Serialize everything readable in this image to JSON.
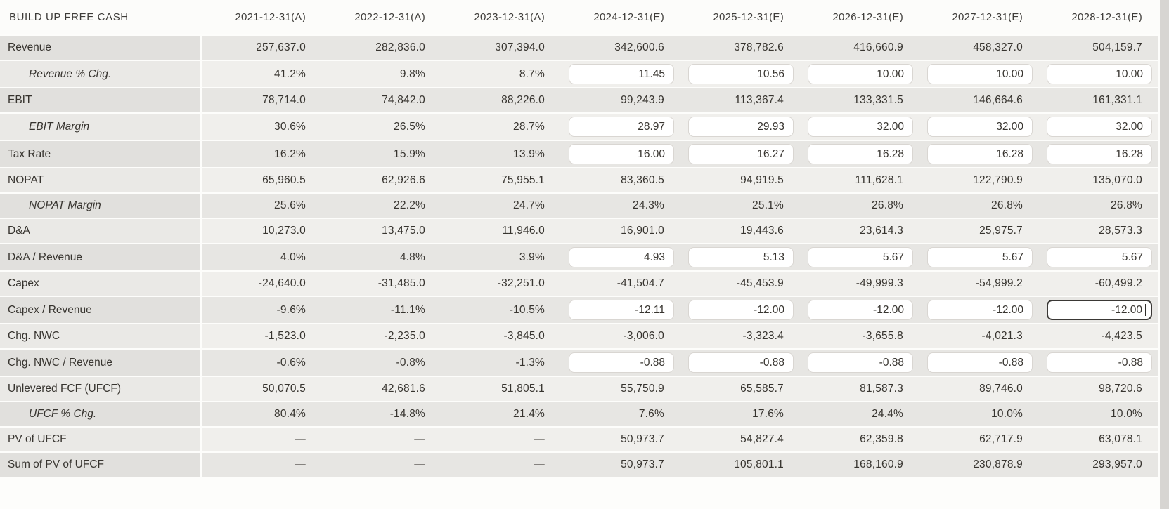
{
  "table": {
    "title": "BUILD UP FREE CASH",
    "columns": [
      "2021-12-31(A)",
      "2022-12-31(A)",
      "2023-12-31(A)",
      "2024-12-31(E)",
      "2025-12-31(E)",
      "2026-12-31(E)",
      "2027-12-31(E)",
      "2028-12-31(E)"
    ],
    "rows": [
      {
        "label": "Revenue",
        "italic": false,
        "indent": false,
        "cells": [
          {
            "kind": "text",
            "value": "257,637.0"
          },
          {
            "kind": "text",
            "value": "282,836.0"
          },
          {
            "kind": "text",
            "value": "307,394.0"
          },
          {
            "kind": "text",
            "value": "342,600.6"
          },
          {
            "kind": "text",
            "value": "378,782.6"
          },
          {
            "kind": "text",
            "value": "416,660.9"
          },
          {
            "kind": "text",
            "value": "458,327.0"
          },
          {
            "kind": "text",
            "value": "504,159.7"
          }
        ]
      },
      {
        "label": "Revenue % Chg.",
        "italic": true,
        "indent": true,
        "cells": [
          {
            "kind": "text",
            "value": "41.2%"
          },
          {
            "kind": "text",
            "value": "9.8%"
          },
          {
            "kind": "text",
            "value": "8.7%"
          },
          {
            "kind": "input",
            "value": "11.45"
          },
          {
            "kind": "input",
            "value": "10.56"
          },
          {
            "kind": "input",
            "value": "10.00"
          },
          {
            "kind": "input",
            "value": "10.00"
          },
          {
            "kind": "input",
            "value": "10.00"
          }
        ]
      },
      {
        "label": "EBIT",
        "italic": false,
        "indent": false,
        "cells": [
          {
            "kind": "text",
            "value": "78,714.0"
          },
          {
            "kind": "text",
            "value": "74,842.0"
          },
          {
            "kind": "text",
            "value": "88,226.0"
          },
          {
            "kind": "text",
            "value": "99,243.9"
          },
          {
            "kind": "text",
            "value": "113,367.4"
          },
          {
            "kind": "text",
            "value": "133,331.5"
          },
          {
            "kind": "text",
            "value": "146,664.6"
          },
          {
            "kind": "text",
            "value": "161,331.1"
          }
        ]
      },
      {
        "label": "EBIT Margin",
        "italic": true,
        "indent": true,
        "cells": [
          {
            "kind": "text",
            "value": "30.6%"
          },
          {
            "kind": "text",
            "value": "26.5%"
          },
          {
            "kind": "text",
            "value": "28.7%"
          },
          {
            "kind": "input",
            "value": "28.97"
          },
          {
            "kind": "input",
            "value": "29.93"
          },
          {
            "kind": "input",
            "value": "32.00"
          },
          {
            "kind": "input",
            "value": "32.00"
          },
          {
            "kind": "input",
            "value": "32.00"
          }
        ]
      },
      {
        "label": "Tax Rate",
        "italic": false,
        "indent": false,
        "cells": [
          {
            "kind": "text",
            "value": "16.2%"
          },
          {
            "kind": "text",
            "value": "15.9%"
          },
          {
            "kind": "text",
            "value": "13.9%"
          },
          {
            "kind": "input",
            "value": "16.00"
          },
          {
            "kind": "input",
            "value": "16.27"
          },
          {
            "kind": "input",
            "value": "16.28"
          },
          {
            "kind": "input",
            "value": "16.28"
          },
          {
            "kind": "input",
            "value": "16.28"
          }
        ]
      },
      {
        "label": "NOPAT",
        "italic": false,
        "indent": false,
        "cells": [
          {
            "kind": "text",
            "value": "65,960.5"
          },
          {
            "kind": "text",
            "value": "62,926.6"
          },
          {
            "kind": "text",
            "value": "75,955.1"
          },
          {
            "kind": "text",
            "value": "83,360.5"
          },
          {
            "kind": "text",
            "value": "94,919.5"
          },
          {
            "kind": "text",
            "value": "111,628.1"
          },
          {
            "kind": "text",
            "value": "122,790.9"
          },
          {
            "kind": "text",
            "value": "135,070.0"
          }
        ]
      },
      {
        "label": "NOPAT Margin",
        "italic": true,
        "indent": true,
        "cells": [
          {
            "kind": "text",
            "value": "25.6%"
          },
          {
            "kind": "text",
            "value": "22.2%"
          },
          {
            "kind": "text",
            "value": "24.7%"
          },
          {
            "kind": "text",
            "value": "24.3%"
          },
          {
            "kind": "text",
            "value": "25.1%"
          },
          {
            "kind": "text",
            "value": "26.8%"
          },
          {
            "kind": "text",
            "value": "26.8%"
          },
          {
            "kind": "text",
            "value": "26.8%"
          }
        ]
      },
      {
        "label": "D&A",
        "italic": false,
        "indent": false,
        "cells": [
          {
            "kind": "text",
            "value": "10,273.0"
          },
          {
            "kind": "text",
            "value": "13,475.0"
          },
          {
            "kind": "text",
            "value": "11,946.0"
          },
          {
            "kind": "text",
            "value": "16,901.0"
          },
          {
            "kind": "text",
            "value": "19,443.6"
          },
          {
            "kind": "text",
            "value": "23,614.3"
          },
          {
            "kind": "text",
            "value": "25,975.7"
          },
          {
            "kind": "text",
            "value": "28,573.3"
          }
        ]
      },
      {
        "label": "D&A / Revenue",
        "italic": false,
        "indent": false,
        "cells": [
          {
            "kind": "text",
            "value": "4.0%"
          },
          {
            "kind": "text",
            "value": "4.8%"
          },
          {
            "kind": "text",
            "value": "3.9%"
          },
          {
            "kind": "input",
            "value": "4.93"
          },
          {
            "kind": "input",
            "value": "5.13"
          },
          {
            "kind": "input",
            "value": "5.67"
          },
          {
            "kind": "input",
            "value": "5.67"
          },
          {
            "kind": "input",
            "value": "5.67"
          }
        ]
      },
      {
        "label": "Capex",
        "italic": false,
        "indent": false,
        "cells": [
          {
            "kind": "text",
            "value": "-24,640.0"
          },
          {
            "kind": "text",
            "value": "-31,485.0"
          },
          {
            "kind": "text",
            "value": "-32,251.0"
          },
          {
            "kind": "text",
            "value": "-41,504.7"
          },
          {
            "kind": "text",
            "value": "-45,453.9"
          },
          {
            "kind": "text",
            "value": "-49,999.3"
          },
          {
            "kind": "text",
            "value": "-54,999.2"
          },
          {
            "kind": "text",
            "value": "-60,499.2"
          }
        ]
      },
      {
        "label": "Capex / Revenue",
        "italic": false,
        "indent": false,
        "cells": [
          {
            "kind": "text",
            "value": "-9.6%"
          },
          {
            "kind": "text",
            "value": "-11.1%"
          },
          {
            "kind": "text",
            "value": "-10.5%"
          },
          {
            "kind": "input",
            "value": "-12.11"
          },
          {
            "kind": "input",
            "value": "-12.00"
          },
          {
            "kind": "input",
            "value": "-12.00"
          },
          {
            "kind": "input",
            "value": "-12.00"
          },
          {
            "kind": "input",
            "value": "-12.00",
            "focused": true
          }
        ]
      },
      {
        "label": "Chg. NWC",
        "italic": false,
        "indent": false,
        "cells": [
          {
            "kind": "text",
            "value": "-1,523.0"
          },
          {
            "kind": "text",
            "value": "-2,235.0"
          },
          {
            "kind": "text",
            "value": "-3,845.0"
          },
          {
            "kind": "text",
            "value": "-3,006.0"
          },
          {
            "kind": "text",
            "value": "-3,323.4"
          },
          {
            "kind": "text",
            "value": "-3,655.8"
          },
          {
            "kind": "text",
            "value": "-4,021.3"
          },
          {
            "kind": "text",
            "value": "-4,423.5"
          }
        ]
      },
      {
        "label": "Chg. NWC / Revenue",
        "italic": false,
        "indent": false,
        "cells": [
          {
            "kind": "text",
            "value": "-0.6%"
          },
          {
            "kind": "text",
            "value": "-0.8%"
          },
          {
            "kind": "text",
            "value": "-1.3%"
          },
          {
            "kind": "input",
            "value": "-0.88"
          },
          {
            "kind": "input",
            "value": "-0.88"
          },
          {
            "kind": "input",
            "value": "-0.88"
          },
          {
            "kind": "input",
            "value": "-0.88"
          },
          {
            "kind": "input",
            "value": "-0.88"
          }
        ]
      },
      {
        "label": "Unlevered FCF (UFCF)",
        "italic": false,
        "indent": false,
        "cells": [
          {
            "kind": "text",
            "value": "50,070.5"
          },
          {
            "kind": "text",
            "value": "42,681.6"
          },
          {
            "kind": "text",
            "value": "51,805.1"
          },
          {
            "kind": "text",
            "value": "55,750.9"
          },
          {
            "kind": "text",
            "value": "65,585.7"
          },
          {
            "kind": "text",
            "value": "81,587.3"
          },
          {
            "kind": "text",
            "value": "89,746.0"
          },
          {
            "kind": "text",
            "value": "98,720.6"
          }
        ]
      },
      {
        "label": "UFCF % Chg.",
        "italic": true,
        "indent": true,
        "cells": [
          {
            "kind": "text",
            "value": "80.4%"
          },
          {
            "kind": "text",
            "value": "-14.8%"
          },
          {
            "kind": "text",
            "value": "21.4%"
          },
          {
            "kind": "text",
            "value": "7.6%"
          },
          {
            "kind": "text",
            "value": "17.6%"
          },
          {
            "kind": "text",
            "value": "24.4%"
          },
          {
            "kind": "text",
            "value": "10.0%"
          },
          {
            "kind": "text",
            "value": "10.0%"
          }
        ]
      },
      {
        "label": "PV of UFCF",
        "italic": false,
        "indent": false,
        "cells": [
          {
            "kind": "text",
            "value": "—"
          },
          {
            "kind": "text",
            "value": "—"
          },
          {
            "kind": "text",
            "value": "—"
          },
          {
            "kind": "text",
            "value": "50,973.7"
          },
          {
            "kind": "text",
            "value": "54,827.4"
          },
          {
            "kind": "text",
            "value": "62,359.8"
          },
          {
            "kind": "text",
            "value": "62,717.9"
          },
          {
            "kind": "text",
            "value": "63,078.1"
          }
        ]
      },
      {
        "label": "Sum of PV of UFCF",
        "italic": false,
        "indent": false,
        "cells": [
          {
            "kind": "text",
            "value": "—"
          },
          {
            "kind": "text",
            "value": "—"
          },
          {
            "kind": "text",
            "value": "—"
          },
          {
            "kind": "text",
            "value": "50,973.7"
          },
          {
            "kind": "text",
            "value": "105,801.1"
          },
          {
            "kind": "text",
            "value": "168,160.9"
          },
          {
            "kind": "text",
            "value": "230,878.9"
          },
          {
            "kind": "text",
            "value": "293,957.0"
          }
        ]
      }
    ]
  },
  "colors": {
    "row_dark": "#e7e6e3",
    "row_dark_label": "#e1e0dd",
    "row_light": "#f0efec",
    "row_light_label": "#eae9e6",
    "input_border": "#d9d6d2",
    "focused_input_border": "#3a3835",
    "text": "#37342f",
    "scroll_strip": "#d7d5d2"
  }
}
